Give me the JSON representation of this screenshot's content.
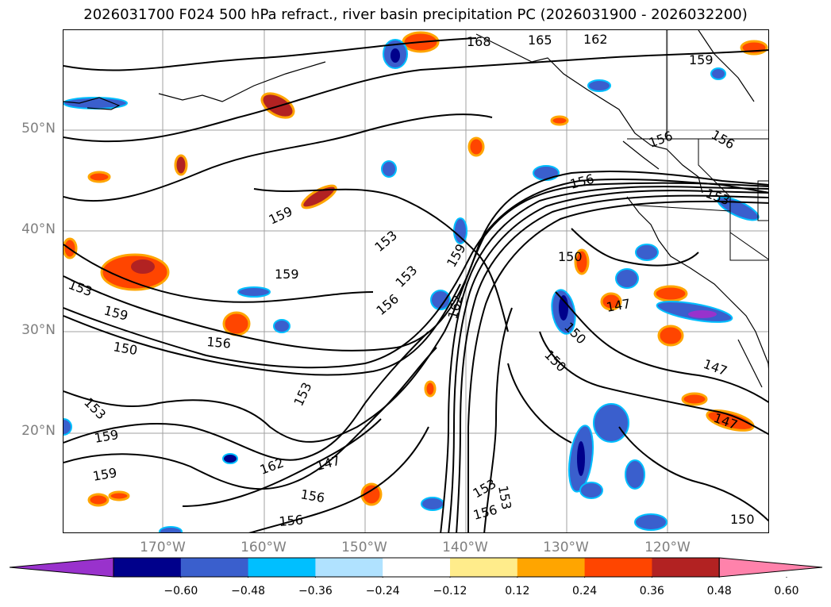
{
  "title": "2026031700 F024 500 hPa refract., river basin precipitation PC (2026031900 - 2026032200)",
  "lat_labels": [
    "50°N",
    "40°N",
    "30°N",
    "20°N"
  ],
  "lon_labels": [
    "170°W",
    "160°W",
    "150°W",
    "140°W",
    "130°W",
    "120°W"
  ],
  "contour_labels": [
    "168",
    "165",
    "162",
    "159",
    "156",
    "156",
    "153",
    "156",
    "159",
    "153",
    "159",
    "153",
    "153",
    "156",
    "159",
    "162",
    "150",
    "153",
    "159",
    "150",
    "156",
    "147",
    "150",
    "150",
    "147",
    "147",
    "159",
    "153",
    "147",
    "159",
    "162",
    "156",
    "156",
    "153",
    "153",
    "156",
    "150"
  ],
  "colorbar": {
    "ticks": [
      "−0.60",
      "−0.48",
      "−0.36",
      "−0.24",
      "−0.12",
      "0.12",
      "0.24",
      "0.36",
      "0.48",
      "0.60"
    ],
    "colors": [
      "#9932cc",
      "#00008b",
      "#3a5fcd",
      "#00bfff",
      "#b0e2ff",
      "#ffffff",
      "#ffec8b",
      "#ffa500",
      "#ff4500",
      "#b22222",
      "#ff82ab"
    ]
  },
  "colors": {
    "contour": "#000000",
    "grid": "#a0a0a0",
    "coast": "#000000"
  }
}
